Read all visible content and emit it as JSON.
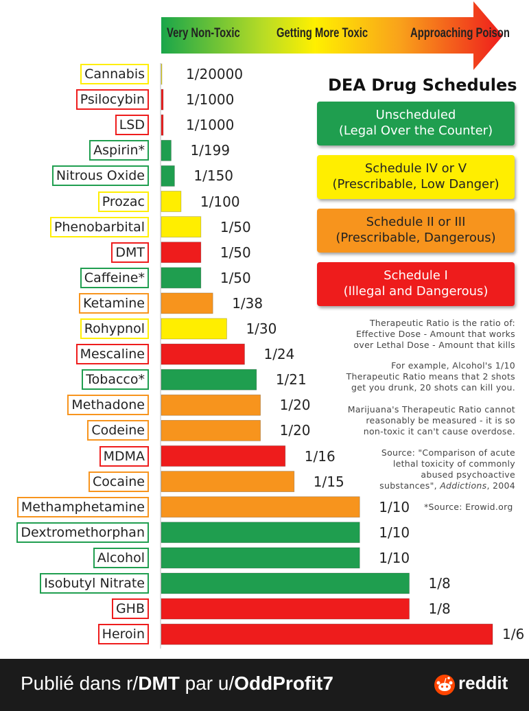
{
  "chart_data": {
    "type": "bar",
    "orientation": "horizontal",
    "title": "DEA Drug Schedules",
    "categories": [
      "Cannabis",
      "Psilocybin",
      "LSD",
      "Aspirin*",
      "Nitrous Oxide",
      "Prozac",
      "Phenobarbital",
      "DMT",
      "Caffeine*",
      "Ketamine",
      "Rohypnol",
      "Mescaline",
      "Tobacco*",
      "Methadone",
      "Codeine",
      "MDMA",
      "Cocaine",
      "Methamphetamine",
      "Dextromethorphan",
      "Alcohol",
      "Isobutyl Nitrate",
      "GHB",
      "Heroin"
    ],
    "value_labels": [
      "1/20000",
      "1/1000",
      "1/1000",
      "1/199",
      "1/150",
      "1/100",
      "1/50",
      "1/50",
      "1/50",
      "1/38",
      "1/30",
      "1/24",
      "1/21",
      "1/20",
      "1/20",
      "1/16",
      "1/15",
      "1/10",
      "1/10",
      "1/10",
      "1/8",
      "1/8",
      "1/6"
    ],
    "values": [
      5e-05,
      0.001,
      0.001,
      0.005,
      0.0067,
      0.01,
      0.02,
      0.02,
      0.02,
      0.026,
      0.033,
      0.042,
      0.048,
      0.05,
      0.05,
      0.0625,
      0.067,
      0.1,
      0.1,
      0.1,
      0.125,
      0.125,
      0.167
    ],
    "schedule": [
      "IV-V",
      "I",
      "I",
      "unscheduled",
      "unscheduled",
      "IV-V",
      "IV-V",
      "I",
      "unscheduled",
      "II-III",
      "IV-V",
      "I",
      "unscheduled",
      "II-III",
      "II-III",
      "I",
      "II-III",
      "II-III",
      "unscheduled",
      "unscheduled",
      "unscheduled",
      "I",
      "I"
    ],
    "xlim": [
      0,
      0.167
    ],
    "grid": false,
    "legend": "right"
  },
  "colors": {
    "unscheduled": "#1f9e4f",
    "IV-V": "#ffee00",
    "II-III": "#f7941d",
    "I": "#ee1c1c",
    "axis": "#bbbbbb"
  },
  "scale": {
    "left": "Very Non-Toxic",
    "middle": "Getting More Toxic",
    "right": "Approaching Poison"
  },
  "legend": {
    "title": "DEA Drug Schedules",
    "items": [
      {
        "line1": "Unscheduled",
        "line2": "(Legal Over the Counter)",
        "color": "#1f9e4f",
        "text_color": "#ffffff"
      },
      {
        "line1": "Schedule IV or V",
        "line2": "(Prescribable, Low Danger)",
        "color": "#ffee00",
        "text_color": "#222222"
      },
      {
        "line1": "Schedule II or III",
        "line2": "(Prescribable, Dangerous)",
        "color": "#f7941d",
        "text_color": "#222222"
      },
      {
        "line1": "Schedule I",
        "line2": "(Illegal and Dangerous)",
        "color": "#ee1c1c",
        "text_color": "#ffffff"
      }
    ]
  },
  "notes": {
    "ratio_1": "Therapeutic Ratio is the ratio of:",
    "ratio_2": "Effective Dose - Amount that works",
    "ratio_3": "over Lethal Dose - Amount that kills",
    "example_1": "For example, Alcohol's 1/10",
    "example_2": "Therapeutic Ratio means that 2 shots",
    "example_3": "get you drunk, 20 shots can kill you.",
    "marijuana_1": "Marijuana's Therapeutic Ratio cannot",
    "marijuana_2": "reasonably be measured - it is so",
    "marijuana_3": "non-toxic it can't cause overdose.",
    "source_1": "Source: \"Comparison of acute",
    "source_2": "lethal toxicity of commonly",
    "source_3": "abused psychoactive",
    "source_4": "substances\", ",
    "source_journal": "Addictions",
    "source_5": ", 2004",
    "erowid": "*Source: Erowid.org"
  },
  "footer": {
    "prefix": "Publié dans r/",
    "subreddit": "DMT",
    "middle": " par u/",
    "user": "OddProfit7",
    "brand": "reddit"
  }
}
